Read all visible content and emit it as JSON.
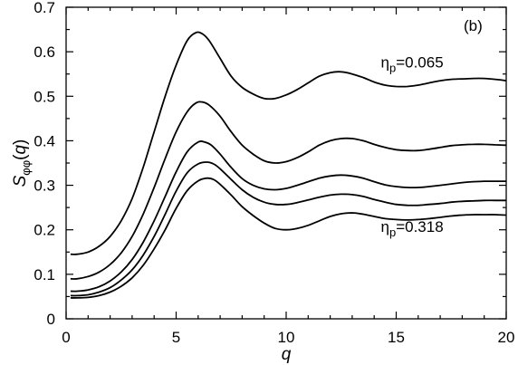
{
  "chart_data": {
    "type": "line",
    "panel_label": "(b)",
    "xlabel": "q",
    "ylabel": {
      "main": "S",
      "sub": "φφ",
      "arg_open": "(",
      "arg": "q",
      "arg_close": ")"
    },
    "xlim": [
      0,
      20
    ],
    "ylim": [
      0,
      0.7
    ],
    "xticks": [
      0,
      5,
      10,
      15,
      20
    ],
    "xticklabels": [
      "0",
      "5",
      "10",
      "15",
      "20"
    ],
    "yticks": [
      0,
      0.1,
      0.2,
      0.3,
      0.4,
      0.5,
      0.6,
      0.7
    ],
    "yticklabels": [
      "0",
      "0.1",
      "0.2",
      "0.3",
      "0.4",
      "0.5",
      "0.6",
      "0.7"
    ],
    "grid": false,
    "annotations": [
      {
        "symbol": "η",
        "sub": "p",
        "text": "=0.065",
        "q": 14.3,
        "s": 0.565
      },
      {
        "symbol": "η",
        "sub": "p",
        "text": "=0.318",
        "q": 14.3,
        "s": 0.195
      }
    ],
    "series": [
      {
        "x": [
          0.2,
          0.5,
          1,
          1.5,
          2,
          2.5,
          3,
          3.5,
          4,
          4.5,
          5,
          5.5,
          5.9,
          6.2,
          6.5,
          7,
          7.5,
          8,
          8.5,
          9,
          9.5,
          10,
          10.5,
          11,
          11.5,
          12,
          12.5,
          13,
          13.5,
          14,
          14.5,
          15,
          15.5,
          16,
          16.5,
          17,
          17.5,
          18,
          18.5,
          19,
          19.5,
          20
        ],
        "y": [
          0.145,
          0.145,
          0.15,
          0.163,
          0.185,
          0.22,
          0.27,
          0.34,
          0.42,
          0.5,
          0.57,
          0.625,
          0.643,
          0.64,
          0.625,
          0.585,
          0.545,
          0.52,
          0.505,
          0.495,
          0.495,
          0.503,
          0.515,
          0.53,
          0.545,
          0.553,
          0.555,
          0.55,
          0.542,
          0.532,
          0.525,
          0.522,
          0.522,
          0.525,
          0.53,
          0.535,
          0.538,
          0.539,
          0.54,
          0.54,
          0.538,
          0.535
        ]
      },
      {
        "x": [
          0.2,
          0.5,
          1,
          1.5,
          2,
          2.5,
          3,
          3.5,
          4,
          4.5,
          5,
          5.5,
          5.9,
          6.2,
          6.5,
          7,
          7.5,
          8,
          8.5,
          9,
          9.5,
          10,
          10.5,
          11,
          11.5,
          12,
          12.5,
          13,
          13.5,
          14,
          14.5,
          15,
          15.5,
          16,
          16.5,
          17,
          17.5,
          18,
          18.5,
          19,
          19.5,
          20
        ],
        "y": [
          0.09,
          0.09,
          0.095,
          0.105,
          0.122,
          0.148,
          0.185,
          0.235,
          0.295,
          0.36,
          0.42,
          0.465,
          0.485,
          0.487,
          0.48,
          0.455,
          0.42,
          0.39,
          0.37,
          0.355,
          0.35,
          0.353,
          0.362,
          0.375,
          0.39,
          0.4,
          0.405,
          0.405,
          0.4,
          0.392,
          0.385,
          0.38,
          0.378,
          0.378,
          0.381,
          0.385,
          0.389,
          0.391,
          0.392,
          0.392,
          0.391,
          0.39
        ]
      },
      {
        "x": [
          0.2,
          0.5,
          1,
          1.5,
          2,
          2.5,
          3,
          3.5,
          4,
          4.5,
          5,
          5.5,
          6,
          6.3,
          6.6,
          7,
          7.5,
          8,
          8.5,
          9,
          9.5,
          10,
          10.5,
          11,
          11.5,
          12,
          12.5,
          13,
          13.5,
          14,
          14.5,
          15,
          15.5,
          16,
          16.5,
          17,
          17.5,
          18,
          18.5,
          19,
          19.5,
          20
        ],
        "y": [
          0.062,
          0.062,
          0.065,
          0.072,
          0.085,
          0.105,
          0.133,
          0.172,
          0.22,
          0.275,
          0.33,
          0.375,
          0.397,
          0.397,
          0.39,
          0.37,
          0.34,
          0.315,
          0.3,
          0.292,
          0.29,
          0.293,
          0.3,
          0.308,
          0.316,
          0.321,
          0.323,
          0.321,
          0.316,
          0.308,
          0.301,
          0.297,
          0.295,
          0.295,
          0.297,
          0.3,
          0.303,
          0.306,
          0.308,
          0.309,
          0.309,
          0.309
        ]
      },
      {
        "x": [
          0.2,
          0.5,
          1,
          1.5,
          2,
          2.5,
          3,
          3.5,
          4,
          4.5,
          5,
          5.5,
          6,
          6.4,
          6.7,
          7,
          7.5,
          8,
          8.5,
          9,
          9.5,
          10,
          10.5,
          11,
          11.5,
          12,
          12.5,
          13,
          13.5,
          14,
          14.5,
          15,
          15.5,
          16,
          16.5,
          17,
          17.5,
          18,
          18.5,
          19,
          19.5,
          20
        ],
        "y": [
          0.052,
          0.052,
          0.054,
          0.06,
          0.07,
          0.087,
          0.11,
          0.143,
          0.185,
          0.235,
          0.287,
          0.328,
          0.348,
          0.352,
          0.348,
          0.337,
          0.313,
          0.29,
          0.273,
          0.262,
          0.257,
          0.257,
          0.261,
          0.267,
          0.273,
          0.278,
          0.28,
          0.279,
          0.275,
          0.268,
          0.262,
          0.257,
          0.255,
          0.255,
          0.257,
          0.259,
          0.262,
          0.264,
          0.265,
          0.266,
          0.266,
          0.266
        ]
      },
      {
        "x": [
          0.2,
          0.5,
          1,
          1.5,
          2,
          2.5,
          3,
          3.5,
          4,
          4.5,
          5,
          5.5,
          6,
          6.4,
          6.7,
          7,
          7.5,
          8,
          8.5,
          9,
          9.5,
          10,
          10.5,
          11,
          11.5,
          12,
          12.5,
          13,
          13.5,
          14,
          14.5,
          15,
          15.5,
          16,
          16.5,
          17,
          17.5,
          18,
          18.5,
          19,
          19.5,
          20
        ],
        "y": [
          0.047,
          0.047,
          0.048,
          0.052,
          0.06,
          0.073,
          0.092,
          0.12,
          0.157,
          0.2,
          0.248,
          0.288,
          0.31,
          0.316,
          0.313,
          0.302,
          0.278,
          0.252,
          0.232,
          0.215,
          0.203,
          0.2,
          0.203,
          0.21,
          0.22,
          0.23,
          0.236,
          0.238,
          0.235,
          0.23,
          0.225,
          0.223,
          0.222,
          0.223,
          0.225,
          0.228,
          0.231,
          0.233,
          0.234,
          0.234,
          0.234,
          0.233
        ]
      }
    ]
  }
}
